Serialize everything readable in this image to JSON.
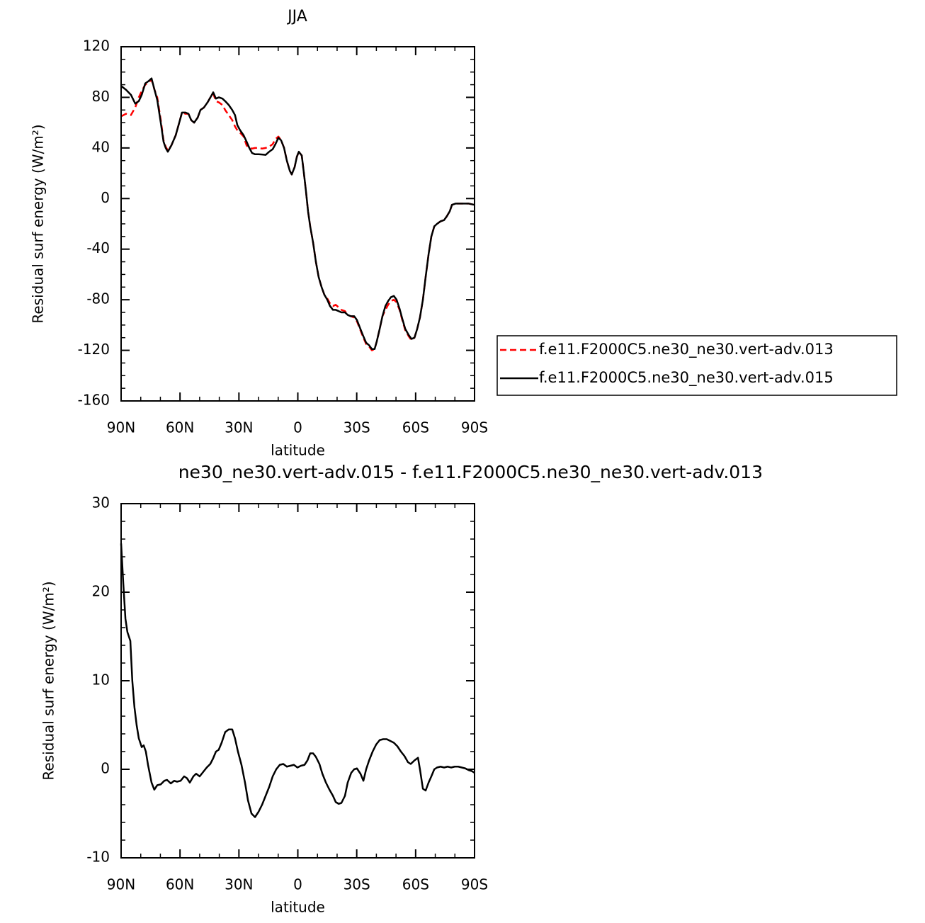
{
  "chart_data": [
    {
      "type": "line",
      "title": "JJA",
      "xlabel": "latitude",
      "ylabel": "Residual surf energy (W/m²)",
      "xlim": [
        90,
        -90
      ],
      "xticks": [
        {
          "value": 90,
          "label": "90N"
        },
        {
          "value": 60,
          "label": "60N"
        },
        {
          "value": 30,
          "label": "30N"
        },
        0,
        {
          "value": -30,
          "label": "30S"
        },
        {
          "value": -60,
          "label": "60S"
        },
        {
          "value": -90,
          "label": "90S"
        }
      ],
      "xminorticks": [
        80,
        70,
        50,
        40,
        20,
        10,
        -10,
        -20,
        -40,
        -50,
        -70,
        -80
      ],
      "ylim": [
        -160,
        120
      ],
      "yticks": [
        -160,
        -120,
        -80,
        -40,
        0,
        40,
        80,
        120
      ],
      "yminorticks": [
        -150,
        -140,
        -130,
        -110,
        -100,
        -90,
        -70,
        -60,
        -50,
        -30,
        -20,
        -10,
        10,
        20,
        30,
        50,
        60,
        70,
        90,
        100,
        110
      ],
      "legend": "outside right",
      "x": [
        90,
        87.5,
        85,
        82.8,
        81,
        79.5,
        77.7,
        75.9,
        74.5,
        73,
        71.6,
        69.8,
        68.4,
        67.3,
        66.2,
        64.4,
        62.2,
        60.4,
        59,
        57.2,
        55.7,
        54.3,
        52.8,
        51,
        49.6,
        47.8,
        46,
        44.5,
        43.1,
        41.7,
        40.2,
        38.4,
        37,
        35.2,
        33.4,
        32,
        30.8,
        29.4,
        27.6,
        26.1,
        24.7,
        23.3,
        21.8,
        20,
        18.2,
        16.4,
        14.6,
        12.8,
        11.4,
        9.9,
        8.5,
        7,
        5.6,
        4.1,
        3.1,
        1.6,
        0.5,
        -0.5,
        -2,
        -3.1,
        -4.2,
        -5.2,
        -6.3,
        -7.8,
        -9.2,
        -10.6,
        -12.1,
        -13.5,
        -15,
        -16.4,
        -17.9,
        -19.3,
        -20.8,
        -22.2,
        -24,
        -25.4,
        -26.9,
        -28.7,
        -30.1,
        -31.6,
        -33.4,
        -34.8,
        -36.3,
        -37.7,
        -39.1,
        -40.2,
        -41.7,
        -43.1,
        -44.6,
        -46,
        -47.4,
        -48.9,
        -50.3,
        -51.8,
        -53.2,
        -54.7,
        -56.5,
        -57.9,
        -59.4,
        -60.8,
        -62.2,
        -63.7,
        -65.1,
        -66.6,
        -68,
        -69.5,
        -70.9,
        -72.7,
        -74.5,
        -75.9,
        -77.4,
        -78.5,
        -80.3,
        -82.1,
        -84.6,
        -87.1,
        -90
      ],
      "series": [
        {
          "name": "f.e11.F2000C5.ne30_ne30.vert-adv.013",
          "color": "#ff0000",
          "linestyle": "dashed",
          "values": [
            65,
            67,
            66,
            72,
            80,
            85,
            90,
            92,
            94,
            86,
            80,
            62,
            46,
            41,
            38,
            42,
            50,
            60,
            68,
            67,
            67,
            62,
            60,
            64,
            70,
            72,
            76,
            80,
            83,
            77,
            76,
            74,
            70,
            66,
            62,
            57,
            54,
            52,
            49,
            42,
            40,
            39.5,
            40,
            40,
            39.5,
            40,
            41,
            43,
            47,
            49,
            46,
            40,
            30,
            22,
            19,
            25,
            33,
            37,
            34,
            20,
            5,
            -10,
            -22,
            -35,
            -50,
            -62,
            -70,
            -76,
            -79,
            -83,
            -85,
            -84,
            -86,
            -88,
            -89,
            -92,
            -93,
            -94,
            -97,
            -103,
            -110,
            -115,
            -117,
            -120,
            -119,
            -113,
            -103,
            -93,
            -88,
            -84,
            -81,
            -80,
            -82,
            -88,
            -96,
            -104,
            -109,
            -112,
            -110,
            -103,
            -94,
            -80,
            -62,
            -44,
            -30,
            -22,
            -20,
            -18,
            -17,
            -14,
            -10,
            -5,
            -4,
            -4,
            -4,
            -4,
            -5
          ]
        },
        {
          "name": "f.e11.F2000C5.ne30_ne30.vert-adv.015",
          "color": "#000000",
          "linestyle": "solid",
          "values": [
            89,
            86,
            82,
            75,
            77,
            82,
            91,
            93,
            95,
            86,
            78,
            60,
            45,
            40,
            37,
            42,
            50,
            60,
            68,
            68,
            67,
            62,
            60,
            64,
            70,
            72,
            76,
            80,
            84,
            79,
            80,
            79,
            77,
            74,
            70,
            66,
            58,
            54,
            50,
            45,
            40,
            36,
            35,
            35,
            34.8,
            34.5,
            37,
            39,
            43,
            48,
            46,
            40,
            30,
            22,
            19,
            25,
            33,
            37,
            34,
            20,
            5,
            -10,
            -22,
            -35,
            -50,
            -62,
            -70,
            -76,
            -80,
            -85,
            -88,
            -88,
            -89,
            -90,
            -90,
            -92,
            -93,
            -93,
            -96,
            -102,
            -109,
            -114,
            -116,
            -119,
            -119,
            -113,
            -103,
            -93,
            -85,
            -81,
            -78,
            -77,
            -80,
            -87,
            -95,
            -103,
            -108,
            -111,
            -110,
            -103,
            -94,
            -80,
            -62,
            -44,
            -30,
            -22,
            -20,
            -18,
            -17,
            -14,
            -10,
            -5,
            -4,
            -4,
            -4,
            -4,
            -5
          ]
        }
      ]
    },
    {
      "type": "line",
      "title": "ne30_ne30.vert-adv.015 - f.e11.F2000C5.ne30_ne30.vert-adv.013",
      "xlabel": "latitude",
      "ylabel": "Residual surf energy (W/m²)",
      "xlim": [
        90,
        -90
      ],
      "xticks": [
        {
          "value": 90,
          "label": "90N"
        },
        {
          "value": 60,
          "label": "60N"
        },
        {
          "value": 30,
          "label": "30N"
        },
        0,
        {
          "value": -30,
          "label": "30S"
        },
        {
          "value": -60,
          "label": "60S"
        },
        {
          "value": -90,
          "label": "90S"
        }
      ],
      "xminorticks": [
        80,
        70,
        50,
        40,
        20,
        10,
        -10,
        -20,
        -40,
        -50,
        -70,
        -80
      ],
      "ylim": [
        -10,
        30
      ],
      "yticks": [
        -10,
        0,
        10,
        20,
        30
      ],
      "yminorticks": [
        -8,
        -6,
        -4,
        -2,
        2,
        4,
        6,
        8,
        12,
        14,
        16,
        18,
        22,
        24,
        26,
        28
      ],
      "x": [
        90,
        88.9,
        87.8,
        86.8,
        85.3,
        84.3,
        83.2,
        82.1,
        81,
        79.5,
        78.5,
        77.4,
        76.3,
        74.5,
        73.1,
        71.6,
        69.8,
        68,
        66.6,
        64.7,
        63,
        61.5,
        59.7,
        57.9,
        56.5,
        55,
        53.2,
        51.8,
        50,
        48.2,
        46.4,
        44.6,
        43.2,
        41.7,
        40.3,
        38.8,
        37,
        35.2,
        33.4,
        32,
        30.5,
        28.7,
        26.9,
        25.4,
        23.6,
        21.8,
        20,
        18.2,
        16.4,
        14.6,
        12.8,
        11,
        9.2,
        7.4,
        5.6,
        3.8,
        2,
        0.2,
        -1.6,
        -3.4,
        -4.9,
        -6.3,
        -7.8,
        -9.2,
        -11,
        -12.5,
        -14.3,
        -16.1,
        -17.9,
        -19.3,
        -20.8,
        -22.2,
        -24,
        -25.4,
        -27.2,
        -28.7,
        -30.1,
        -31.9,
        -33.4,
        -34.8,
        -36.3,
        -38.1,
        -39.9,
        -41.7,
        -43.5,
        -45.3,
        -47.1,
        -48.9,
        -50.7,
        -52.5,
        -54.3,
        -56.1,
        -57.5,
        -59.4,
        -61.2,
        -62.2,
        -63.7,
        -65.1,
        -66.6,
        -68,
        -69.5,
        -70.9,
        -72.7,
        -74.5,
        -76.3,
        -78.1,
        -79.9,
        -81.7,
        -83.5,
        -85.3,
        -87.1,
        -88.6,
        -90
      ],
      "series": [
        {
          "color": "#000000",
          "linestyle": "solid",
          "values": [
            25.5,
            21,
            17,
            15.5,
            14.5,
            10,
            7,
            5,
            3.5,
            2.5,
            2.7,
            2,
            0.5,
            -1.5,
            -2.3,
            -1.8,
            -1.7,
            -1.3,
            -1.2,
            -1.6,
            -1.3,
            -1.4,
            -1.3,
            -0.8,
            -1,
            -1.5,
            -0.8,
            -0.5,
            -0.8,
            -0.3,
            0.2,
            0.6,
            1.2,
            2,
            2.2,
            3,
            4.2,
            4.5,
            4.5,
            3.5,
            2,
            0.5,
            -1.5,
            -3.5,
            -5,
            -5.4,
            -4.8,
            -4,
            -3,
            -2,
            -0.8,
            0,
            0.5,
            0.6,
            0.3,
            0.4,
            0.5,
            0.2,
            0.4,
            0.5,
            1,
            1.8,
            1.8,
            1.4,
            0.6,
            -0.5,
            -1.5,
            -2.3,
            -3,
            -3.7,
            -3.9,
            -3.8,
            -3,
            -1.5,
            -0.4,
            0,
            0.1,
            -0.5,
            -1.3,
            0,
            1,
            2,
            2.8,
            3.3,
            3.4,
            3.4,
            3.2,
            3,
            2.6,
            2,
            1.5,
            0.8,
            0.6,
            1,
            1.3,
            0,
            -2.2,
            -2.4,
            -1.5,
            -0.8,
            0,
            0.2,
            0.3,
            0.2,
            0.3,
            0.2,
            0.3,
            0.3,
            0.2,
            0.1,
            -0.1,
            -0.2,
            -0.4
          ]
        }
      ]
    }
  ]
}
